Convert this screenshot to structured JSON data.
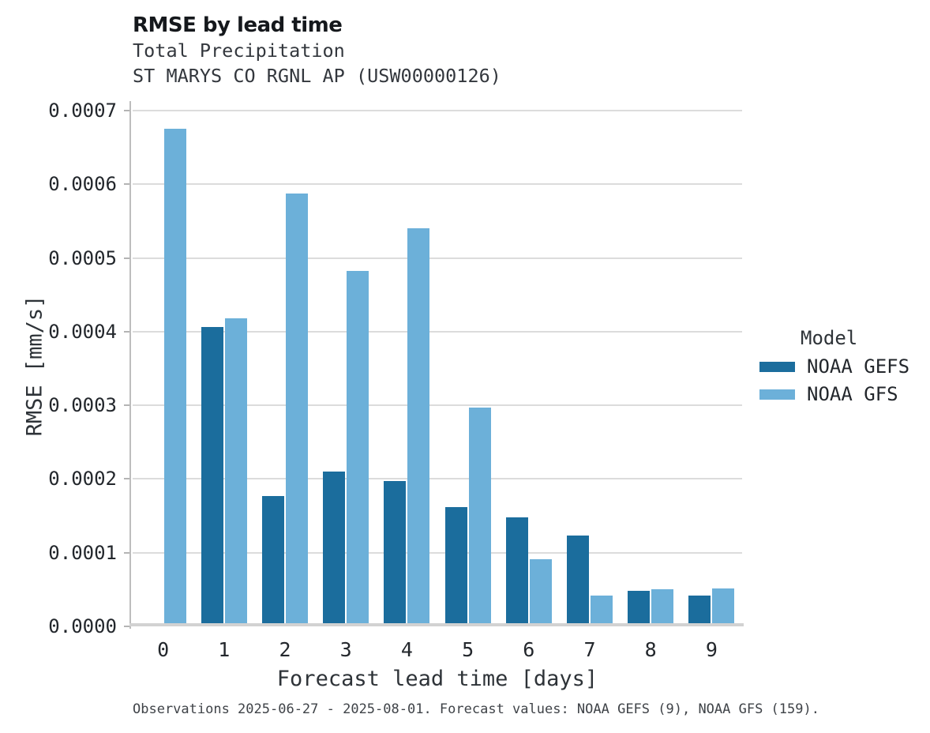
{
  "chart_data": {
    "type": "bar",
    "title": "RMSE by lead time",
    "subtitle_lines": [
      "Total Precipitation",
      "ST MARYS CO RGNL AP (USW00000126)"
    ],
    "xlabel": "Forecast lead time [days]",
    "ylabel": "RMSE [mm/s]",
    "categories": [
      "0",
      "1",
      "2",
      "3",
      "4",
      "5",
      "6",
      "7",
      "8",
      "9"
    ],
    "series": [
      {
        "name": "NOAA GEFS",
        "color": "#1b6d9d",
        "values": [
          null,
          0.000406,
          0.000177,
          0.00021,
          0.000197,
          0.000162,
          0.000148,
          0.000123,
          4.78e-05,
          4.2e-05
        ]
      },
      {
        "name": "NOAA GFS",
        "color": "#6cb0d9",
        "values": [
          0.000675,
          0.000418,
          0.000587,
          0.000482,
          0.00054,
          0.000297,
          9.1e-05,
          4.16e-05,
          5.09e-05,
          5.17e-05
        ]
      }
    ],
    "ylim": [
      0,
      0.0007
    ],
    "yticks": [
      "0.0000",
      "0.0001",
      "0.0002",
      "0.0003",
      "0.0004",
      "0.0005",
      "0.0006",
      "0.0007"
    ],
    "legend_title": "Model",
    "legend_position": "right",
    "grid": "horizontal"
  },
  "footer": {
    "note": "Observations 2025-06-27 - 2025-08-01. Forecast values: NOAA GEFS (9), NOAA GFS (159)."
  }
}
